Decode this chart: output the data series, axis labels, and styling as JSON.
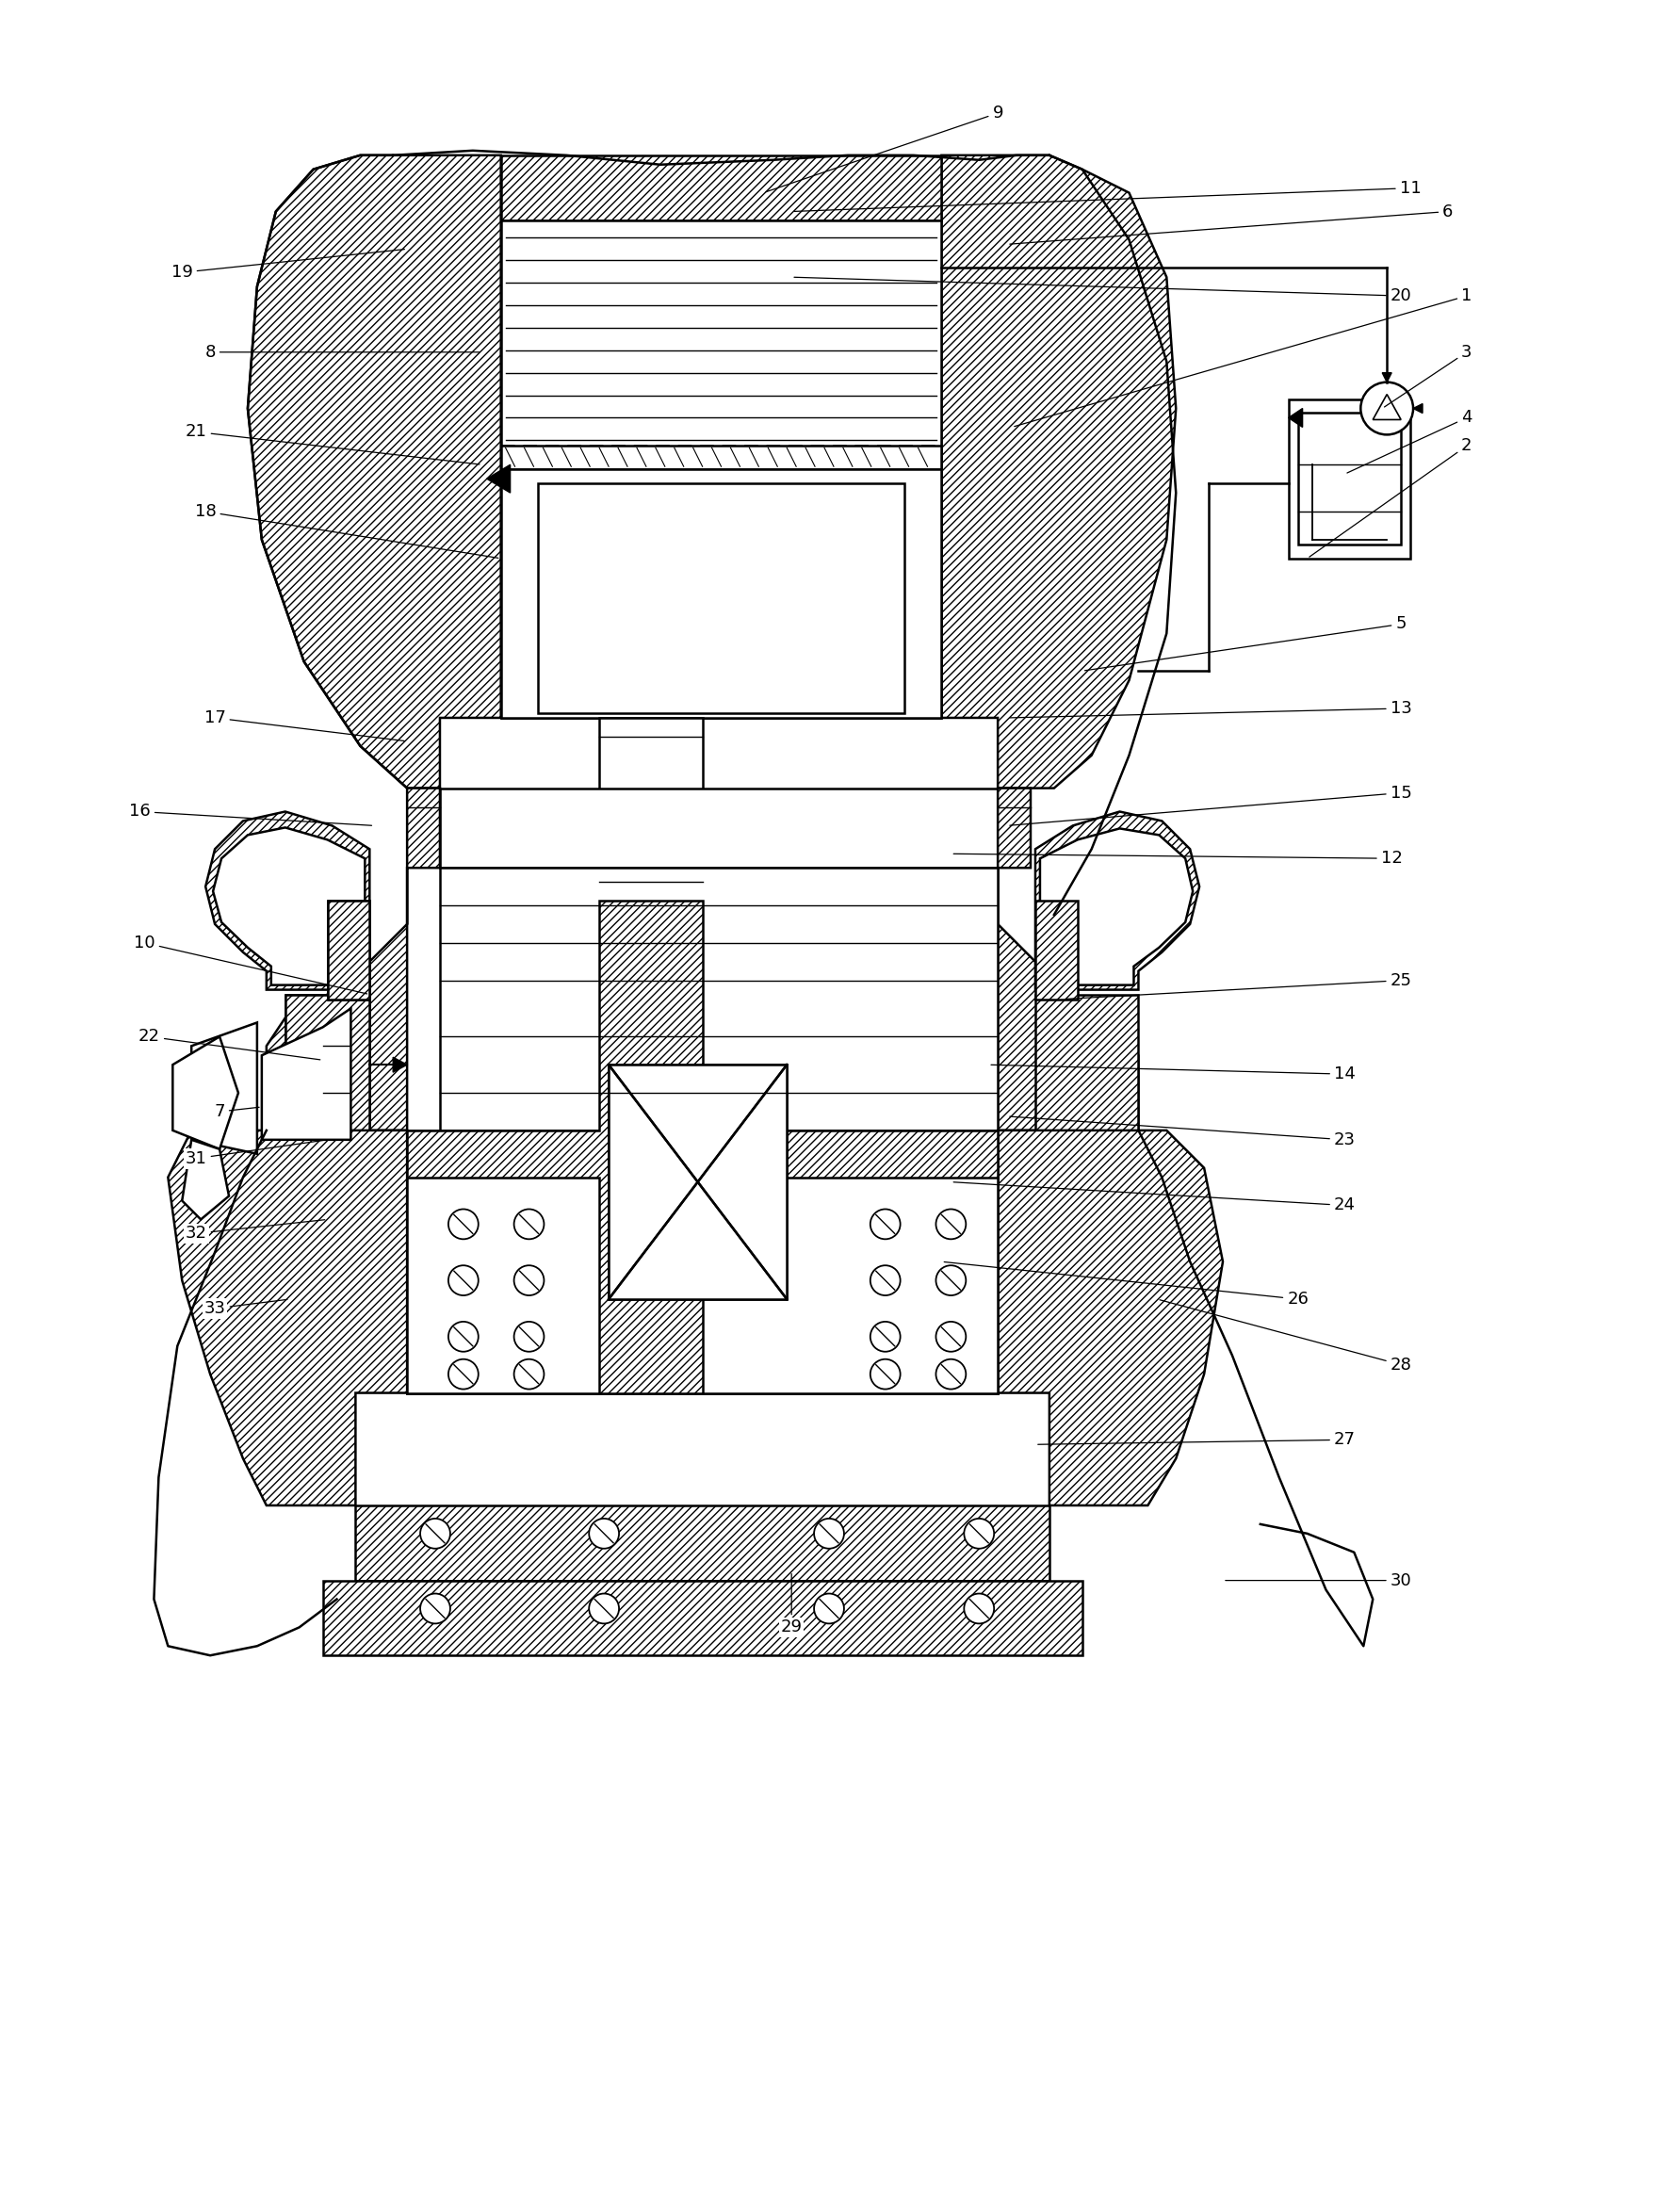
{
  "bg_color": "#ffffff",
  "line_color": "#000000",
  "label_fontsize": 13,
  "label_targets": {
    "1": [
      1560,
      310,
      1075,
      450
    ],
    "2": [
      1560,
      470,
      1390,
      590
    ],
    "3": [
      1560,
      370,
      1470,
      430
    ],
    "4": [
      1560,
      440,
      1430,
      500
    ],
    "5": [
      1490,
      660,
      1150,
      710
    ],
    "6": [
      1540,
      220,
      1070,
      255
    ],
    "7": [
      230,
      1180,
      275,
      1175
    ],
    "8": [
      220,
      370,
      510,
      370
    ],
    "9": [
      1060,
      115,
      810,
      200
    ],
    "10": [
      150,
      1000,
      390,
      1055
    ],
    "11": [
      1500,
      195,
      840,
      220
    ],
    "12": [
      1480,
      910,
      1010,
      905
    ],
    "13": [
      1490,
      750,
      1070,
      760
    ],
    "14": [
      1430,
      1140,
      1050,
      1130
    ],
    "15": [
      1490,
      840,
      1070,
      875
    ],
    "16": [
      145,
      860,
      395,
      875
    ],
    "17": [
      225,
      760,
      430,
      785
    ],
    "18": [
      215,
      540,
      530,
      590
    ],
    "19": [
      190,
      285,
      430,
      260
    ],
    "20": [
      1490,
      310,
      840,
      290
    ],
    "21": [
      205,
      455,
      510,
      490
    ],
    "22": [
      155,
      1100,
      340,
      1125
    ],
    "23": [
      1430,
      1210,
      1070,
      1185
    ],
    "24": [
      1430,
      1280,
      1010,
      1255
    ],
    "25": [
      1490,
      1040,
      1130,
      1060
    ],
    "26": [
      1380,
      1380,
      1000,
      1340
    ],
    "27": [
      1430,
      1530,
      1100,
      1535
    ],
    "28": [
      1490,
      1450,
      1230,
      1380
    ],
    "29": [
      840,
      1730,
      840,
      1670
    ],
    "30": [
      1490,
      1680,
      1300,
      1680
    ],
    "31": [
      205,
      1230,
      345,
      1210
    ],
    "32": [
      205,
      1310,
      345,
      1295
    ],
    "33": [
      225,
      1390,
      305,
      1380
    ]
  }
}
